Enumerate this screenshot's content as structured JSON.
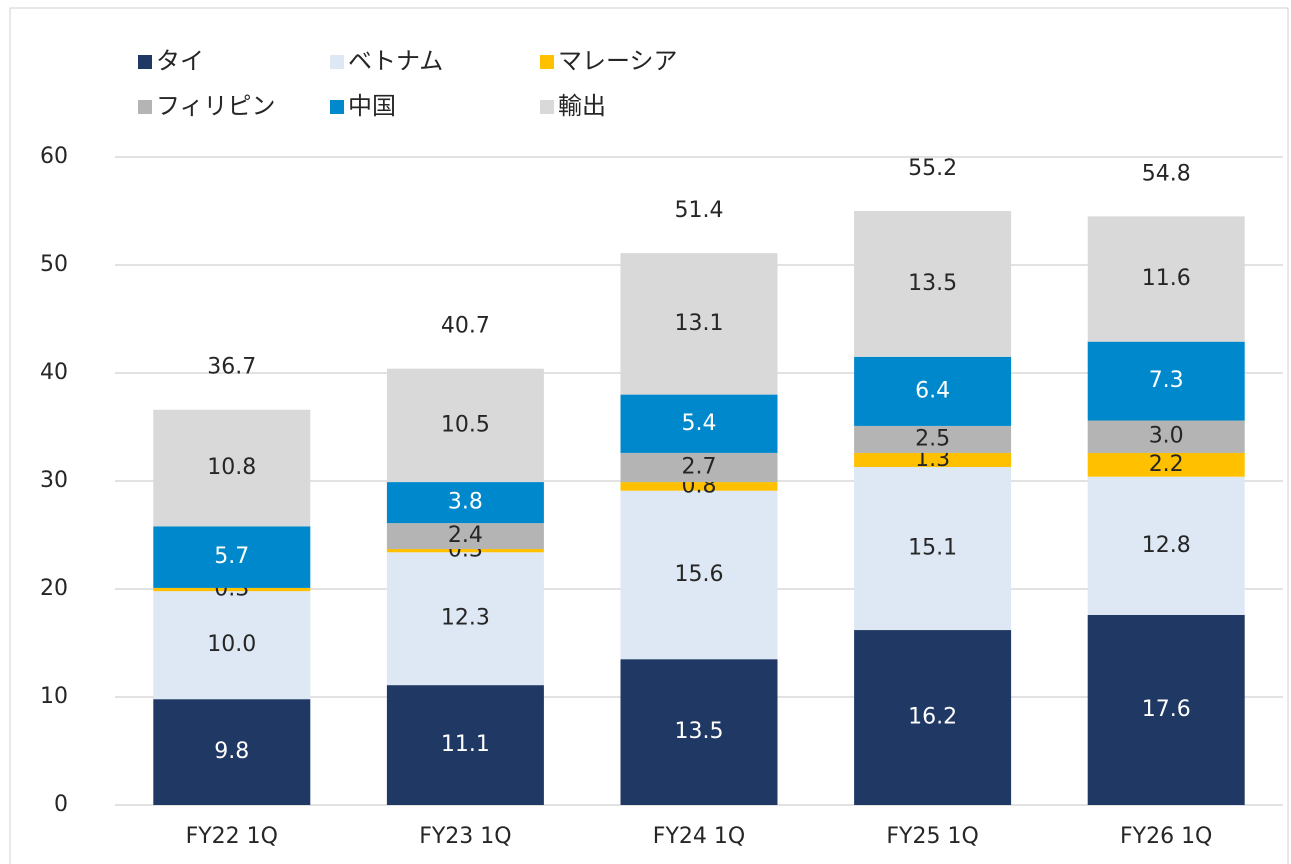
{
  "chart_data": {
    "type": "stacked_bar",
    "categories": [
      "FY22 1Q",
      "FY23 1Q",
      "FY24 1Q",
      "FY25 1Q",
      "FY26 1Q"
    ],
    "series": [
      {
        "name": "タイ",
        "color": "#203864",
        "values": [
          9.8,
          11.1,
          13.5,
          16.2,
          17.6
        ],
        "value_labels": [
          "9.8",
          "11.1",
          "13.5",
          "16.2",
          "17.6"
        ]
      },
      {
        "name": "ベトナム",
        "color": "#dde8f4",
        "values": [
          10.0,
          12.3,
          15.6,
          15.1,
          12.8
        ],
        "value_labels": [
          "10.0",
          "12.3",
          "15.6",
          "15.1",
          "12.8"
        ]
      },
      {
        "name": "マレーシア",
        "color": "#ffc000",
        "values": [
          0.3,
          0.3,
          0.8,
          1.3,
          2.2
        ],
        "value_labels": [
          "0.3",
          "0.3",
          "0.8",
          "1.3",
          "2.2"
        ]
      },
      {
        "name": "フィリピン",
        "color": "#b4b4b4",
        "values": [
          null,
          2.4,
          2.7,
          2.5,
          3.0
        ],
        "value_labels": [
          null,
          "2.4",
          "2.7",
          "2.5",
          "3.0"
        ]
      },
      {
        "name": "中国",
        "color": "#0088cc",
        "values": [
          5.7,
          3.8,
          5.4,
          6.4,
          7.3
        ],
        "value_labels": [
          "5.7",
          "3.8",
          "5.4",
          "6.4",
          "7.3"
        ]
      },
      {
        "name": "輸出",
        "color": "#d9d9d9",
        "values": [
          10.8,
          10.5,
          13.1,
          13.5,
          11.6
        ],
        "value_labels": [
          "10.8",
          "10.5",
          "13.1",
          "13.5",
          "11.6"
        ]
      }
    ],
    "totals": [
      36.7,
      40.7,
      51.4,
      55.2,
      54.8
    ],
    "ylim": [
      0,
      60
    ],
    "yticks": [
      0,
      10,
      20,
      30,
      40,
      50,
      60
    ],
    "grid": true,
    "legend": "top-left"
  }
}
